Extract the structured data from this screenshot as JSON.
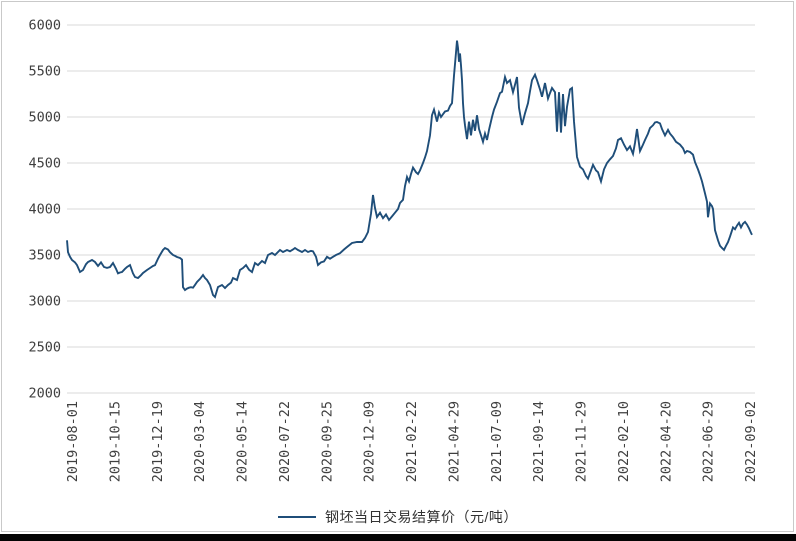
{
  "window": {
    "background": "#FFFFFF",
    "border_color": "#C9C9C9",
    "bottom_bar_color": "#040404"
  },
  "styles": {
    "gridline_color": "#D9D9D9",
    "tick_label_color": "#3F3F3F",
    "series_color": "#1F4E79"
  },
  "chart_data": {
    "type": "line",
    "title": "",
    "xlabel": "",
    "ylabel": "",
    "legend_label": "钢坯当日交易结算价（元/吨）",
    "legend_position": "bottom-center",
    "grid": "horizontal-only",
    "ylim": [
      2000,
      6000
    ],
    "y_ticks": [
      2000,
      2500,
      3000,
      3500,
      4000,
      4500,
      5000,
      5500,
      6000
    ],
    "x_tick_labels": [
      "2019-08-01",
      "2019-10-15",
      "2019-12-19",
      "2020-03-04",
      "2020-05-14",
      "2020-07-22",
      "2020-09-25",
      "2020-12-09",
      "2021-02-22",
      "2021-04-29",
      "2021-07-09",
      "2021-09-14",
      "2021-11-29",
      "2022-02-10",
      "2022-04-20",
      "2022-06-29",
      "2022-09-02"
    ],
    "x_axis_note": "daily trading series; points sampled as [x_px_along_axis, price]; tick 2019-08-01 at px 72, tick 2022-09-02 at px 750",
    "series": [
      {
        "name": "钢坯当日交易结算价（元/吨）",
        "color": "#1F4E79",
        "points": [
          [
            67,
            3660
          ],
          [
            68,
            3530
          ],
          [
            70,
            3480
          ],
          [
            72,
            3446
          ],
          [
            75,
            3420
          ],
          [
            77,
            3390
          ],
          [
            80,
            3315
          ],
          [
            83,
            3337
          ],
          [
            86,
            3400
          ],
          [
            88,
            3424
          ],
          [
            92,
            3446
          ],
          [
            95,
            3424
          ],
          [
            98,
            3380
          ],
          [
            101,
            3420
          ],
          [
            104,
            3370
          ],
          [
            107,
            3360
          ],
          [
            110,
            3370
          ],
          [
            113,
            3413
          ],
          [
            116,
            3350
          ],
          [
            118,
            3300
          ],
          [
            120,
            3310
          ],
          [
            122,
            3315
          ],
          [
            125,
            3350
          ],
          [
            127,
            3370
          ],
          [
            130,
            3390
          ],
          [
            133,
            3300
          ],
          [
            135,
            3261
          ],
          [
            138,
            3250
          ],
          [
            141,
            3280
          ],
          [
            143,
            3304
          ],
          [
            147,
            3337
          ],
          [
            150,
            3359
          ],
          [
            153,
            3380
          ],
          [
            155,
            3390
          ],
          [
            158,
            3460
          ],
          [
            160,
            3500
          ],
          [
            163,
            3554
          ],
          [
            165,
            3576
          ],
          [
            168,
            3560
          ],
          [
            170,
            3530
          ],
          [
            173,
            3500
          ],
          [
            175,
            3490
          ],
          [
            177,
            3478
          ],
          [
            180,
            3467
          ],
          [
            182,
            3450
          ],
          [
            183,
            3150
          ],
          [
            185,
            3120
          ],
          [
            187,
            3135
          ],
          [
            189,
            3145
          ],
          [
            191,
            3150
          ],
          [
            193,
            3145
          ],
          [
            195,
            3175
          ],
          [
            197,
            3207
          ],
          [
            200,
            3240
          ],
          [
            203,
            3283
          ],
          [
            205,
            3250
          ],
          [
            207,
            3228
          ],
          [
            210,
            3174
          ],
          [
            213,
            3065
          ],
          [
            215,
            3043
          ],
          [
            218,
            3152
          ],
          [
            222,
            3174
          ],
          [
            225,
            3141
          ],
          [
            228,
            3174
          ],
          [
            231,
            3200
          ],
          [
            233,
            3250
          ],
          [
            237,
            3228
          ],
          [
            240,
            3337
          ],
          [
            243,
            3359
          ],
          [
            246,
            3390
          ],
          [
            249,
            3340
          ],
          [
            252,
            3315
          ],
          [
            255,
            3413
          ],
          [
            258,
            3390
          ],
          [
            262,
            3435
          ],
          [
            265,
            3413
          ],
          [
            268,
            3500
          ],
          [
            272,
            3522
          ],
          [
            275,
            3500
          ],
          [
            280,
            3554
          ],
          [
            283,
            3533
          ],
          [
            287,
            3554
          ],
          [
            290,
            3540
          ],
          [
            293,
            3560
          ],
          [
            295,
            3576
          ],
          [
            298,
            3554
          ],
          [
            302,
            3533
          ],
          [
            305,
            3554
          ],
          [
            308,
            3533
          ],
          [
            311,
            3545
          ],
          [
            313,
            3540
          ],
          [
            316,
            3480
          ],
          [
            318,
            3391
          ],
          [
            321,
            3420
          ],
          [
            324,
            3430
          ],
          [
            327,
            3480
          ],
          [
            330,
            3460
          ],
          [
            333,
            3480
          ],
          [
            336,
            3500
          ],
          [
            340,
            3520
          ],
          [
            344,
            3560
          ],
          [
            347,
            3587
          ],
          [
            352,
            3630
          ],
          [
            357,
            3641
          ],
          [
            362,
            3641
          ],
          [
            365,
            3685
          ],
          [
            368,
            3750
          ],
          [
            371,
            3950
          ],
          [
            373,
            4152
          ],
          [
            375,
            4011
          ],
          [
            377,
            3913
          ],
          [
            380,
            3960
          ],
          [
            383,
            3900
          ],
          [
            386,
            3940
          ],
          [
            389,
            3880
          ],
          [
            392,
            3920
          ],
          [
            395,
            3960
          ],
          [
            398,
            4000
          ],
          [
            400,
            4065
          ],
          [
            403,
            4100
          ],
          [
            405,
            4250
          ],
          [
            407,
            4348
          ],
          [
            409,
            4300
          ],
          [
            411,
            4380
          ],
          [
            413,
            4450
          ],
          [
            416,
            4400
          ],
          [
            418,
            4380
          ],
          [
            420,
            4420
          ],
          [
            423,
            4500
          ],
          [
            425,
            4560
          ],
          [
            427,
            4630
          ],
          [
            430,
            4800
          ],
          [
            432,
            5020
          ],
          [
            434,
            5080
          ],
          [
            437,
            4950
          ],
          [
            439,
            5050
          ],
          [
            441,
            5000
          ],
          [
            443,
            5030
          ],
          [
            445,
            5060
          ],
          [
            448,
            5070
          ],
          [
            450,
            5120
          ],
          [
            452,
            5150
          ],
          [
            454,
            5450
          ],
          [
            456,
            5700
          ],
          [
            457,
            5830
          ],
          [
            458,
            5750
          ],
          [
            459,
            5600
          ],
          [
            460,
            5690
          ],
          [
            461,
            5560
          ],
          [
            462,
            5400
          ],
          [
            463,
            5150
          ],
          [
            464,
            5000
          ],
          [
            465,
            4910
          ],
          [
            467,
            4760
          ],
          [
            469,
            4950
          ],
          [
            471,
            4800
          ],
          [
            473,
            4970
          ],
          [
            475,
            4850
          ],
          [
            477,
            5020
          ],
          [
            479,
            4870
          ],
          [
            481,
            4800
          ],
          [
            483,
            4730
          ],
          [
            485,
            4820
          ],
          [
            487,
            4750
          ],
          [
            489,
            4860
          ],
          [
            492,
            5000
          ],
          [
            494,
            5080
          ],
          [
            497,
            5165
          ],
          [
            500,
            5260
          ],
          [
            502,
            5274
          ],
          [
            505,
            5435
          ],
          [
            507,
            5370
          ],
          [
            510,
            5400
          ],
          [
            513,
            5270
          ],
          [
            515,
            5350
          ],
          [
            517,
            5435
          ],
          [
            519,
            5100
          ],
          [
            522,
            4913
          ],
          [
            525,
            5040
          ],
          [
            528,
            5150
          ],
          [
            530,
            5280
          ],
          [
            532,
            5400
          ],
          [
            535,
            5460
          ],
          [
            537,
            5400
          ],
          [
            540,
            5300
          ],
          [
            542,
            5220
          ],
          [
            545,
            5370
          ],
          [
            548,
            5200
          ],
          [
            550,
            5260
          ],
          [
            552,
            5315
          ],
          [
            555,
            5270
          ],
          [
            557,
            4840
          ],
          [
            559,
            5270
          ],
          [
            561,
            4830
          ],
          [
            563,
            5250
          ],
          [
            565,
            4900
          ],
          [
            567,
            5110
          ],
          [
            570,
            5300
          ],
          [
            572,
            5315
          ],
          [
            574,
            4950
          ],
          [
            577,
            4565
          ],
          [
            580,
            4460
          ],
          [
            583,
            4430
          ],
          [
            586,
            4360
          ],
          [
            588,
            4330
          ],
          [
            591,
            4420
          ],
          [
            593,
            4480
          ],
          [
            596,
            4420
          ],
          [
            598,
            4400
          ],
          [
            601,
            4300
          ],
          [
            604,
            4430
          ],
          [
            607,
            4500
          ],
          [
            610,
            4540
          ],
          [
            613,
            4576
          ],
          [
            616,
            4660
          ],
          [
            618,
            4750
          ],
          [
            621,
            4770
          ],
          [
            624,
            4700
          ],
          [
            627,
            4640
          ],
          [
            630,
            4680
          ],
          [
            633,
            4600
          ],
          [
            635,
            4720
          ],
          [
            637,
            4870
          ],
          [
            640,
            4630
          ],
          [
            643,
            4700
          ],
          [
            645,
            4750
          ],
          [
            648,
            4820
          ],
          [
            650,
            4880
          ],
          [
            653,
            4910
          ],
          [
            655,
            4940
          ],
          [
            657,
            4946
          ],
          [
            660,
            4930
          ],
          [
            662,
            4870
          ],
          [
            665,
            4800
          ],
          [
            668,
            4860
          ],
          [
            670,
            4820
          ],
          [
            673,
            4780
          ],
          [
            676,
            4730
          ],
          [
            680,
            4700
          ],
          [
            683,
            4660
          ],
          [
            685,
            4609
          ],
          [
            687,
            4630
          ],
          [
            690,
            4620
          ],
          [
            693,
            4590
          ],
          [
            695,
            4510
          ],
          [
            698,
            4430
          ],
          [
            700,
            4370
          ],
          [
            702,
            4300
          ],
          [
            705,
            4170
          ],
          [
            707,
            4080
          ],
          [
            708,
            3910
          ],
          [
            710,
            4060
          ],
          [
            712,
            4030
          ],
          [
            713,
            4000
          ],
          [
            715,
            3770
          ],
          [
            718,
            3660
          ],
          [
            720,
            3600
          ],
          [
            722,
            3576
          ],
          [
            724,
            3555
          ],
          [
            726,
            3600
          ],
          [
            728,
            3640
          ],
          [
            730,
            3700
          ],
          [
            733,
            3800
          ],
          [
            735,
            3780
          ],
          [
            737,
            3820
          ],
          [
            739,
            3850
          ],
          [
            741,
            3800
          ],
          [
            743,
            3840
          ],
          [
            745,
            3860
          ],
          [
            747,
            3830
          ],
          [
            749,
            3790
          ],
          [
            751,
            3740
          ],
          [
            752,
            3720
          ]
        ]
      }
    ]
  }
}
